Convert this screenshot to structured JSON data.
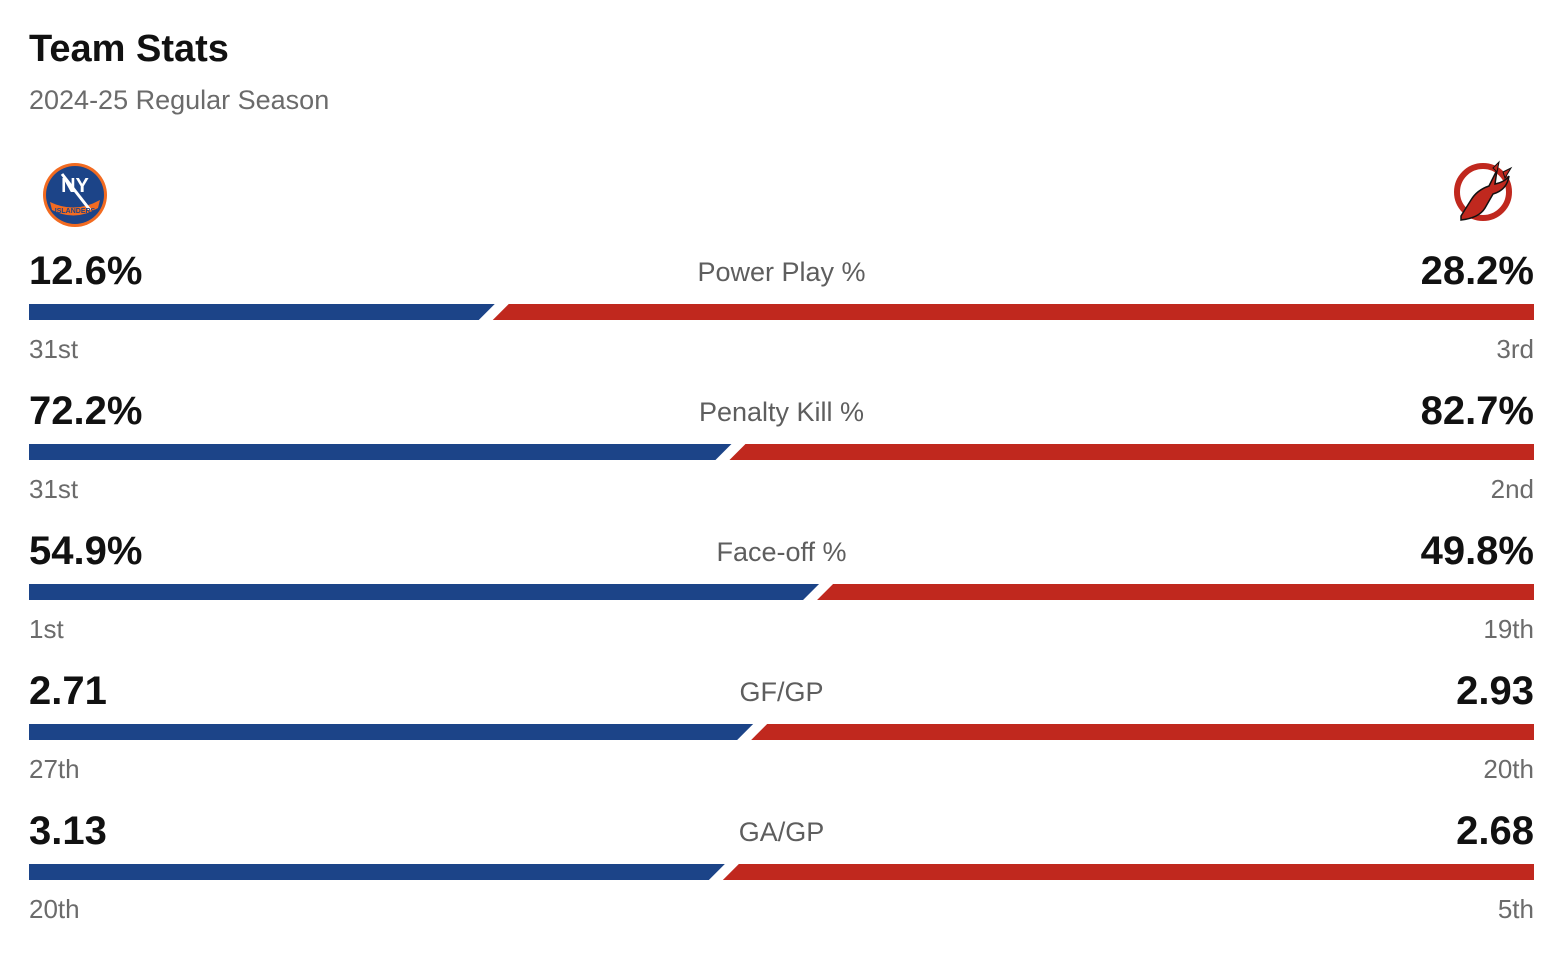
{
  "header": {
    "title": "Team Stats",
    "subtitle": "2024-25 Regular Season"
  },
  "teams": {
    "left": {
      "logo_icon": "new-york-islanders-logo-icon",
      "logo_text_top": "NY",
      "logo_text_bottom": "ISLANDERS",
      "color": "#1c4488"
    },
    "right": {
      "logo_icon": "new-jersey-devils-logo-icon",
      "color": "#c0281e"
    }
  },
  "stats": [
    {
      "label": "Power Play %",
      "left_value": "12.6%",
      "right_value": "28.2%",
      "left_rank": "31st",
      "right_rank": "3rd",
      "left_share": 0.3088
    },
    {
      "label": "Penalty Kill %",
      "left_value": "72.2%",
      "right_value": "82.7%",
      "left_rank": "31st",
      "right_rank": "2nd",
      "left_share": 0.4661
    },
    {
      "label": "Face-off %",
      "left_value": "54.9%",
      "right_value": "49.8%",
      "left_rank": "1st",
      "right_rank": "19th",
      "left_share": 0.5243
    },
    {
      "label": "GF/GP",
      "left_value": "2.71",
      "right_value": "2.93",
      "left_rank": "27th",
      "right_rank": "20th",
      "left_share": 0.4805
    },
    {
      "label": "GA/GP",
      "left_value": "3.13",
      "right_value": "2.68",
      "left_rank": "20th",
      "right_rank": "5th",
      "left_share": 0.4617
    }
  ]
}
